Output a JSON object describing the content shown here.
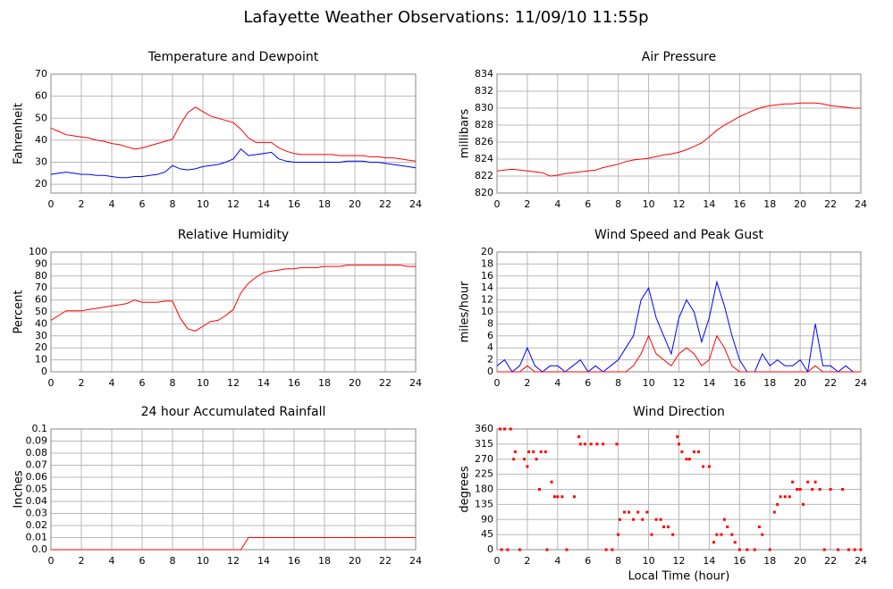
{
  "title": "Lafayette Weather Observations: 11/09/10 11:55p",
  "chart_data": [
    {
      "type": "line",
      "title": "Temperature and Dewpoint",
      "ylabel": "Fahrenheit",
      "x": [
        0,
        0.5,
        1,
        1.5,
        2,
        2.5,
        3,
        3.5,
        4,
        4.5,
        5,
        5.5,
        6,
        6.5,
        7,
        7.5,
        8,
        8.5,
        9,
        9.5,
        10,
        10.5,
        11,
        11.5,
        12,
        12.5,
        13,
        13.5,
        14,
        14.5,
        15,
        15.5,
        16,
        16.5,
        17,
        17.5,
        18,
        18.5,
        19,
        19.5,
        20,
        20.5,
        21,
        21.5,
        22,
        22.5,
        23,
        23.5,
        24
      ],
      "series": [
        {
          "color": "#ff0000",
          "values": [
            45.5,
            44,
            42.5,
            42,
            41.5,
            41,
            40,
            39.5,
            38.5,
            38,
            37,
            36,
            36.5,
            37.5,
            38.5,
            39.5,
            40.5,
            47,
            52.5,
            55,
            53,
            51,
            50,
            49,
            48,
            45,
            41,
            39,
            39,
            39,
            36.5,
            35,
            34,
            33.5,
            33.5,
            33.5,
            33.5,
            33.5,
            33,
            33,
            33,
            33,
            32.5,
            32.5,
            32,
            32,
            31.5,
            31,
            30.5
          ]
        },
        {
          "color": "#0000ff",
          "values": [
            24.5,
            25,
            25.5,
            25,
            24.5,
            24.5,
            24,
            24,
            23.5,
            23,
            23,
            23.5,
            23.5,
            24,
            24.5,
            25.5,
            28.5,
            27,
            26.5,
            27,
            28,
            28.5,
            29,
            30,
            31.5,
            36,
            33,
            33.5,
            34,
            34.5,
            31.5,
            30.5,
            30,
            30,
            30,
            30,
            30,
            30,
            30,
            30.5,
            30.5,
            30.5,
            30,
            30,
            29.5,
            29,
            28.5,
            28,
            27.5
          ]
        }
      ],
      "xlim": [
        0,
        24
      ],
      "xticks": [
        0,
        2,
        4,
        6,
        8,
        10,
        12,
        14,
        16,
        18,
        20,
        22,
        24
      ],
      "ylim": [
        16,
        70
      ],
      "yticks": [
        20,
        30,
        40,
        50,
        60,
        70
      ],
      "grid": true
    },
    {
      "type": "line",
      "title": "Air Pressure",
      "ylabel": "millibars",
      "x": [
        0,
        0.5,
        1,
        1.5,
        2,
        2.5,
        3,
        3.5,
        4,
        4.5,
        5,
        5.5,
        6,
        6.5,
        7,
        7.5,
        8,
        8.5,
        9,
        9.5,
        10,
        10.5,
        11,
        11.5,
        12,
        12.5,
        13,
        13.5,
        14,
        14.5,
        15,
        15.5,
        16,
        16.5,
        17,
        17.5,
        18,
        18.5,
        19,
        19.5,
        20,
        20.5,
        21,
        21.5,
        22,
        22.5,
        23,
        23.5,
        24
      ],
      "series": [
        {
          "color": "#ff0000",
          "values": [
            822.6,
            822.7,
            822.8,
            822.7,
            822.6,
            822.5,
            822.4,
            822.0,
            822.1,
            822.3,
            822.4,
            822.5,
            822.6,
            822.7,
            823.0,
            823.2,
            823.4,
            823.7,
            823.9,
            824.0,
            824.1,
            824.3,
            824.5,
            824.6,
            824.8,
            825.1,
            825.5,
            825.9,
            826.6,
            827.4,
            828.0,
            828.5,
            829.0,
            829.4,
            829.8,
            830.1,
            830.3,
            830.4,
            830.5,
            830.5,
            830.6,
            830.6,
            830.6,
            830.5,
            830.3,
            830.2,
            830.1,
            830.0,
            830.0
          ]
        }
      ],
      "xlim": [
        0,
        24
      ],
      "xticks": [
        0,
        2,
        4,
        6,
        8,
        10,
        12,
        14,
        16,
        18,
        20,
        22,
        24
      ],
      "ylim": [
        820,
        834
      ],
      "yticks": [
        820,
        822,
        824,
        826,
        828,
        830,
        832,
        834
      ],
      "grid": true
    },
    {
      "type": "line",
      "title": "Relative Humidity",
      "ylabel": "Percent",
      "x": [
        0,
        0.5,
        1,
        1.5,
        2,
        2.5,
        3,
        3.5,
        4,
        4.5,
        5,
        5.5,
        6,
        6.5,
        7,
        7.5,
        8,
        8.5,
        9,
        9.5,
        10,
        10.5,
        11,
        11.5,
        12,
        12.5,
        13,
        13.5,
        14,
        14.5,
        15,
        15.5,
        16,
        16.5,
        17,
        17.5,
        18,
        18.5,
        19,
        19.5,
        20,
        20.5,
        21,
        21.5,
        22,
        22.5,
        23,
        23.5,
        24
      ],
      "series": [
        {
          "color": "#ff0000",
          "values": [
            43,
            47,
            51,
            51,
            51,
            52,
            53,
            54,
            55,
            56,
            57,
            60,
            58,
            58,
            58,
            59,
            59,
            45,
            36,
            34,
            38,
            42,
            43,
            47,
            52,
            66,
            74,
            79,
            83,
            84,
            85,
            86,
            86,
            87,
            87,
            87,
            88,
            88,
            88,
            89,
            89,
            89,
            89,
            89,
            89,
            89,
            89,
            88,
            88
          ]
        }
      ],
      "xlim": [
        0,
        24
      ],
      "xticks": [
        0,
        2,
        4,
        6,
        8,
        10,
        12,
        14,
        16,
        18,
        20,
        22,
        24
      ],
      "ylim": [
        0,
        100
      ],
      "yticks": [
        0,
        10,
        20,
        30,
        40,
        50,
        60,
        70,
        80,
        90,
        100
      ],
      "grid": true
    },
    {
      "type": "line",
      "title": "Wind Speed and Peak Gust",
      "ylabel": "miles/hour",
      "x": [
        0,
        0.5,
        1,
        1.5,
        2,
        2.5,
        3,
        3.5,
        4,
        4.5,
        5,
        5.5,
        6,
        6.5,
        7,
        7.5,
        8,
        8.5,
        9,
        9.5,
        10,
        10.5,
        11,
        11.5,
        12,
        12.5,
        13,
        13.5,
        14,
        14.5,
        15,
        15.5,
        16,
        16.5,
        17,
        17.5,
        18,
        18.5,
        19,
        19.5,
        20,
        20.5,
        21,
        21.5,
        22,
        22.5,
        23,
        23.5,
        24
      ],
      "series": [
        {
          "color": "#0000ff",
          "values": [
            1,
            2,
            0,
            1,
            4,
            1,
            0,
            1,
            1,
            0,
            1,
            2,
            0,
            1,
            0,
            1,
            2,
            4,
            6,
            12,
            14,
            9,
            6,
            3,
            9,
            12,
            10,
            5,
            9,
            15,
            11,
            6,
            2,
            0,
            0,
            3,
            1,
            2,
            1,
            1,
            2,
            0,
            8,
            1,
            1,
            0,
            1,
            0,
            0
          ]
        },
        {
          "color": "#ff0000",
          "values": [
            0,
            0,
            0,
            0,
            1,
            0,
            0,
            0,
            0,
            0,
            0,
            0,
            0,
            0,
            0,
            0,
            0,
            0,
            1,
            3,
            6,
            3,
            2,
            1,
            3,
            4,
            3,
            1,
            2,
            6,
            4,
            1,
            0,
            0,
            0,
            0,
            0,
            0,
            0,
            0,
            0,
            0,
            1,
            0,
            0,
            0,
            0,
            0,
            0
          ]
        }
      ],
      "xlim": [
        0,
        24
      ],
      "xticks": [
        0,
        2,
        4,
        6,
        8,
        10,
        12,
        14,
        16,
        18,
        20,
        22,
        24
      ],
      "ylim": [
        0,
        20
      ],
      "yticks": [
        0,
        2,
        4,
        6,
        8,
        10,
        12,
        14,
        16,
        18,
        20
      ],
      "grid": true
    },
    {
      "type": "line",
      "title": "24 hour Accumulated Rainfall",
      "ylabel": "Inches",
      "x": [
        0,
        0.5,
        1,
        1.5,
        2,
        2.5,
        3,
        3.5,
        4,
        4.5,
        5,
        5.5,
        6,
        6.5,
        7,
        7.5,
        8,
        8.5,
        9,
        9.5,
        10,
        10.5,
        11,
        11.5,
        12,
        12.5,
        13,
        13.5,
        14,
        14.5,
        15,
        15.5,
        16,
        16.5,
        17,
        17.5,
        18,
        18.5,
        19,
        19.5,
        20,
        20.5,
        21,
        21.5,
        22,
        22.5,
        23,
        23.5,
        24
      ],
      "series": [
        {
          "color": "#ff0000",
          "values": [
            0,
            0,
            0,
            0,
            0,
            0,
            0,
            0,
            0,
            0,
            0,
            0,
            0,
            0,
            0,
            0,
            0,
            0,
            0,
            0,
            0,
            0,
            0,
            0,
            0,
            0,
            0.01,
            0.01,
            0.01,
            0.01,
            0.01,
            0.01,
            0.01,
            0.01,
            0.01,
            0.01,
            0.01,
            0.01,
            0.01,
            0.01,
            0.01,
            0.01,
            0.01,
            0.01,
            0.01,
            0.01,
            0.01,
            0.01,
            0.01
          ]
        }
      ],
      "xlim": [
        0,
        24
      ],
      "xticks": [
        0,
        2,
        4,
        6,
        8,
        10,
        12,
        14,
        16,
        18,
        20,
        22,
        24
      ],
      "ylim": [
        0,
        0.1
      ],
      "yticks": [
        {
          "value": 0,
          "label": "0.0"
        },
        0.01,
        0.02,
        0.03,
        0.04,
        0.05,
        0.06,
        0.07,
        0.08,
        0.09,
        0.1
      ],
      "grid": true
    },
    {
      "type": "scatter",
      "title": "Wind Direction",
      "ylabel": "degrees",
      "xlabel": "Local Time (hour)",
      "color": "#ff0000",
      "x": [
        0.2,
        0.5,
        0.9,
        0.3,
        0.7,
        1.1,
        1.2,
        1.5,
        1.8,
        2,
        2.1,
        2.4,
        2.6,
        2.8,
        2.9,
        3.2,
        3.3,
        3.6,
        3.8,
        4,
        4.3,
        4.6,
        5.1,
        5.4,
        5.5,
        5.8,
        6.2,
        6.6,
        7,
        7.2,
        7.6,
        7.9,
        8,
        8.1,
        8.4,
        8.7,
        9,
        9.3,
        9.6,
        9.9,
        10.2,
        10.5,
        10.8,
        11,
        11.3,
        11.6,
        11.9,
        12,
        12.2,
        12.5,
        12.7,
        13,
        13.3,
        13.6,
        14,
        14.3,
        14.5,
        14.8,
        15,
        15.2,
        15.5,
        15.7,
        16,
        16.5,
        17,
        17.3,
        17.5,
        18,
        18.3,
        18.5,
        18.7,
        19,
        19.3,
        19.5,
        19.8,
        20,
        20.2,
        20.5,
        20.8,
        21,
        21.3,
        21.6,
        22,
        22.5,
        22.8,
        23.2,
        23.6,
        24
      ],
      "values": [
        360,
        360,
        360,
        0,
        0,
        270,
        292,
        0,
        270,
        248,
        292,
        292,
        270,
        180,
        292,
        292,
        0,
        202,
        158,
        158,
        158,
        0,
        158,
        337,
        315,
        315,
        315,
        315,
        315,
        0,
        0,
        315,
        45,
        90,
        112,
        112,
        90,
        112,
        90,
        112,
        45,
        90,
        90,
        68,
        68,
        45,
        337,
        315,
        292,
        270,
        270,
        292,
        292,
        248,
        248,
        22,
        45,
        45,
        90,
        68,
        45,
        22,
        0,
        0,
        0,
        68,
        45,
        0,
        112,
        135,
        158,
        158,
        158,
        202,
        180,
        180,
        135,
        202,
        180,
        202,
        180,
        0,
        180,
        0,
        180,
        0,
        0,
        0
      ],
      "xlim": [
        0,
        24
      ],
      "xticks": [
        0,
        2,
        4,
        6,
        8,
        10,
        12,
        14,
        16,
        18,
        20,
        22,
        24
      ],
      "ylim": [
        0,
        360
      ],
      "yticks": [
        0,
        45,
        90,
        135,
        180,
        225,
        270,
        315,
        360
      ],
      "grid": true
    }
  ]
}
